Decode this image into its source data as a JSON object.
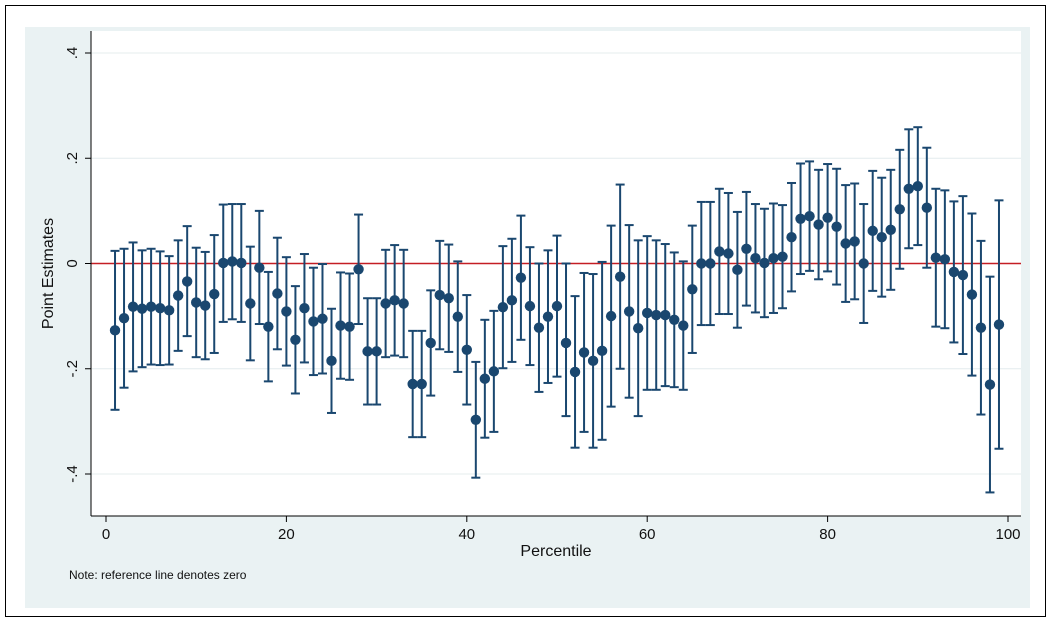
{
  "chart_data": {
    "type": "scatter",
    "xlabel": "Percentile",
    "ylabel": "Point Estimates",
    "note": "Note: reference line denotes zero",
    "xlim": [
      0,
      100
    ],
    "ylim": [
      -0.4,
      0.4
    ],
    "x_ticks": [
      0,
      20,
      40,
      60,
      80,
      100
    ],
    "y_ticks": [
      -0.4,
      -0.2,
      0,
      0.2,
      0.4
    ],
    "x_tick_labels": [
      "0",
      "20",
      "40",
      "60",
      "80",
      "100"
    ],
    "y_tick_labels": [
      "-.4",
      "-.2",
      "0",
      ".2",
      ".4"
    ],
    "reference_line": {
      "y": 0,
      "color": "#c41e24"
    },
    "grid": "horizontal",
    "colors": {
      "marker": "#1a476f",
      "background": "#eaf2f3",
      "plot_background": "#ffffff",
      "grid": "#e4ecee"
    },
    "series": [
      {
        "x": [
          1,
          2,
          3,
          4,
          5,
          6,
          7,
          8,
          9,
          10,
          11,
          12,
          13,
          14,
          15,
          16,
          17,
          18,
          19,
          20,
          21,
          22,
          23,
          24,
          25,
          26,
          27,
          28,
          29,
          30,
          31,
          32,
          33,
          34,
          35,
          36,
          37,
          38,
          39,
          40,
          41,
          42,
          43,
          44,
          45,
          46,
          47,
          48,
          49,
          50,
          51,
          52,
          53,
          54,
          55,
          56,
          57,
          58,
          59,
          60,
          61,
          62,
          63,
          64,
          65,
          66,
          67,
          68,
          69,
          70,
          71,
          72,
          73,
          74,
          75,
          76,
          77,
          78,
          79,
          80,
          81,
          82,
          83,
          84,
          85,
          86,
          87,
          88,
          89,
          90,
          91,
          92,
          93,
          94,
          95,
          96,
          97,
          98,
          99
        ],
        "y": [
          -0.127,
          -0.104,
          -0.082,
          -0.086,
          -0.082,
          -0.085,
          -0.089,
          -0.061,
          -0.034,
          -0.074,
          -0.08,
          -0.058,
          0.001,
          0.004,
          0.001,
          -0.076,
          -0.008,
          -0.12,
          -0.057,
          -0.091,
          -0.145,
          -0.085,
          -0.11,
          -0.105,
          -0.185,
          -0.118,
          -0.12,
          -0.011,
          -0.167,
          -0.167,
          -0.076,
          -0.07,
          -0.076,
          -0.229,
          -0.229,
          -0.151,
          -0.06,
          -0.066,
          -0.101,
          -0.164,
          -0.297,
          -0.219,
          -0.205,
          -0.083,
          -0.07,
          -0.027,
          -0.081,
          -0.122,
          -0.101,
          -0.081,
          -0.151,
          -0.206,
          -0.169,
          -0.185,
          -0.166,
          -0.1,
          -0.025,
          -0.091,
          -0.123,
          -0.094,
          -0.098,
          -0.098,
          -0.107,
          -0.118,
          -0.049,
          0.0,
          0.0,
          0.023,
          0.019,
          -0.012,
          0.028,
          0.01,
          0.001,
          0.01,
          0.013,
          0.05,
          0.085,
          0.09,
          0.074,
          0.087,
          0.07,
          0.038,
          0.042,
          0.0,
          0.062,
          0.05,
          0.064,
          0.103,
          0.142,
          0.147,
          0.106,
          0.011,
          0.008,
          -0.016,
          -0.022,
          -0.059,
          -0.122,
          -0.23,
          -0.116
        ],
        "lo": [
          -0.278,
          -0.236,
          -0.205,
          -0.197,
          -0.192,
          -0.193,
          -0.192,
          -0.166,
          -0.138,
          -0.178,
          -0.182,
          -0.17,
          -0.111,
          -0.106,
          -0.111,
          -0.184,
          -0.115,
          -0.224,
          -0.163,
          -0.194,
          -0.247,
          -0.188,
          -0.212,
          -0.209,
          -0.284,
          -0.219,
          -0.221,
          -0.115,
          -0.268,
          -0.268,
          -0.178,
          -0.175,
          -0.178,
          -0.33,
          -0.33,
          -0.251,
          -0.163,
          -0.168,
          -0.206,
          -0.268,
          -0.407,
          -0.331,
          -0.32,
          -0.199,
          -0.187,
          -0.145,
          -0.193,
          -0.244,
          -0.227,
          -0.215,
          -0.29,
          -0.35,
          -0.32,
          -0.35,
          -0.335,
          -0.272,
          -0.2,
          -0.255,
          -0.29,
          -0.24,
          -0.24,
          -0.233,
          -0.235,
          -0.24,
          -0.17,
          -0.117,
          -0.117,
          -0.096,
          -0.096,
          -0.122,
          -0.08,
          -0.093,
          -0.102,
          -0.094,
          -0.085,
          -0.053,
          -0.02,
          -0.014,
          -0.03,
          -0.015,
          -0.04,
          -0.073,
          -0.068,
          -0.113,
          -0.052,
          -0.063,
          -0.05,
          -0.01,
          0.029,
          0.035,
          -0.008,
          -0.12,
          -0.123,
          -0.15,
          -0.172,
          -0.213,
          -0.287,
          -0.435,
          -0.352
        ],
        "hi": [
          0.024,
          0.028,
          0.04,
          0.025,
          0.028,
          0.023,
          0.014,
          0.044,
          0.071,
          0.03,
          0.022,
          0.054,
          0.112,
          0.113,
          0.113,
          0.032,
          0.1,
          -0.016,
          0.049,
          0.012,
          -0.043,
          0.018,
          -0.008,
          -0.001,
          -0.086,
          -0.017,
          -0.019,
          0.093,
          -0.066,
          -0.066,
          0.026,
          0.035,
          0.026,
          -0.128,
          -0.128,
          -0.051,
          0.043,
          0.036,
          0.004,
          -0.06,
          -0.187,
          -0.107,
          -0.09,
          0.033,
          0.047,
          0.091,
          0.031,
          0.0,
          0.025,
          0.053,
          0.0,
          -0.062,
          -0.018,
          -0.02,
          0.003,
          0.072,
          0.15,
          0.073,
          0.044,
          0.052,
          0.044,
          0.037,
          0.021,
          0.004,
          0.072,
          0.117,
          0.117,
          0.142,
          0.134,
          0.098,
          0.136,
          0.113,
          0.104,
          0.114,
          0.111,
          0.153,
          0.19,
          0.194,
          0.178,
          0.189,
          0.18,
          0.149,
          0.152,
          0.113,
          0.176,
          0.163,
          0.178,
          0.216,
          0.255,
          0.259,
          0.22,
          0.142,
          0.139,
          0.118,
          0.128,
          0.095,
          0.043,
          -0.025,
          0.12
        ]
      }
    ]
  }
}
